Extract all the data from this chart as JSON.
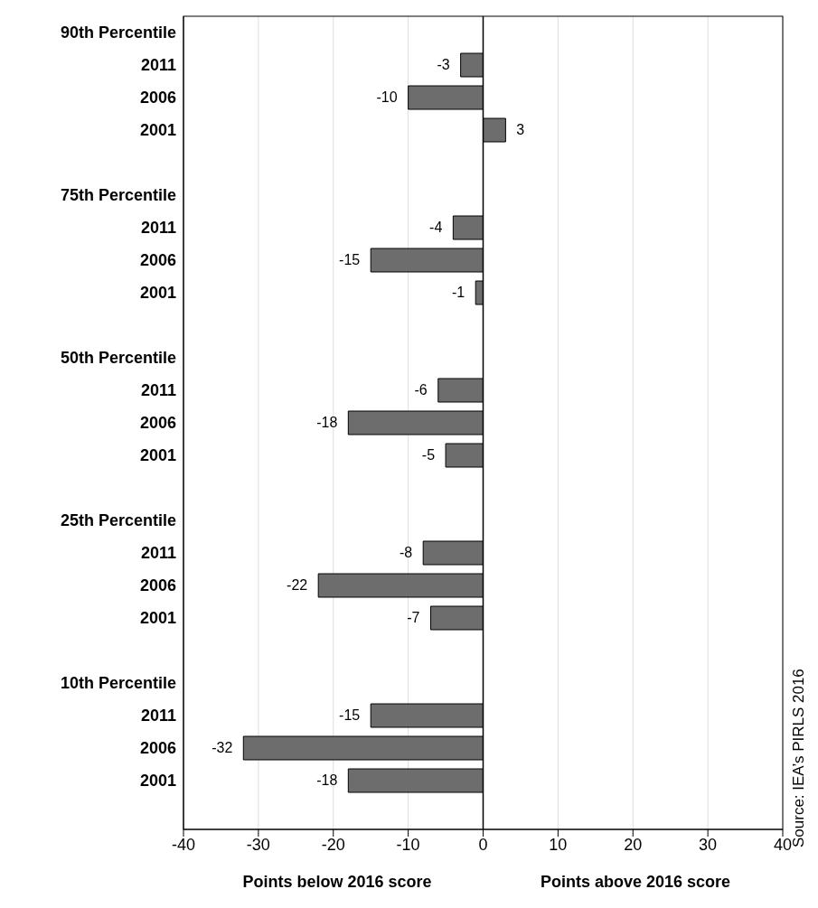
{
  "chart_data": {
    "type": "bar",
    "orientation": "horizontal",
    "categories": [
      "90th Percentile",
      "2011",
      "2006",
      "2001",
      null,
      "75th Percentile",
      "2011",
      "2006",
      "2001",
      null,
      "50th Percentile",
      "2011",
      "2006",
      "2001",
      null,
      "25th Percentile",
      "2011",
      "2006",
      "2001",
      null,
      "10th Percentile",
      "2011",
      "2006",
      "2001",
      null
    ],
    "values": [
      null,
      -3,
      -10,
      3,
      null,
      null,
      -4,
      -15,
      -1,
      null,
      null,
      -6,
      -18,
      -5,
      null,
      null,
      -8,
      -22,
      -7,
      null,
      null,
      -15,
      -32,
      -18,
      null
    ],
    "color": "#6d6d6d",
    "data_labels": true,
    "grid": "x",
    "xlim": [
      -40,
      40
    ],
    "xticks": [
      -40,
      -30,
      -20,
      -10,
      0,
      10,
      20,
      30,
      40
    ],
    "ref_lines": [
      {
        "axis": "x",
        "value": 0,
        "color": "#000000"
      }
    ],
    "annotations": [
      "Points below 2016 score",
      "Points above 2016 score",
      "Source: IEA’s PIRLS 2016"
    ]
  }
}
